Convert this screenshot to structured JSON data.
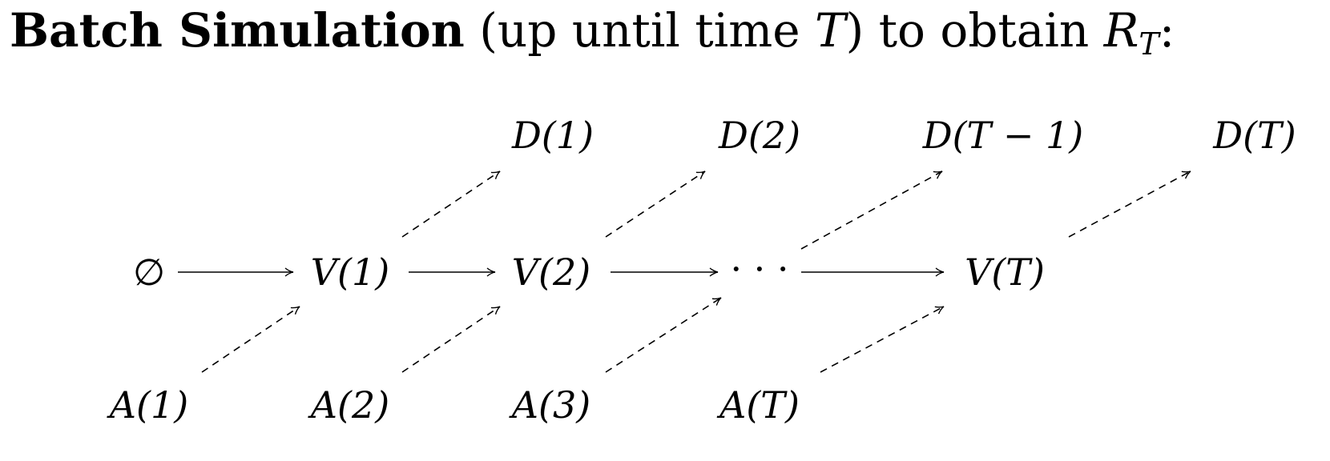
{
  "heading": {
    "bold": "Batch Simulation",
    "rest_prefix": "(up until time ",
    "rest_T": "T",
    "rest_suffix": ") to obtain ",
    "symbol": "R",
    "symbol_sub": "T",
    "colon": ":"
  },
  "nodes": {
    "empty": "∅",
    "v1": "V(1)",
    "v2": "V(2)",
    "dots": "· · ·",
    "vT": "V(T)",
    "d1": "D(1)",
    "d2": "D(2)",
    "dTm1": "D(T − 1)",
    "dT": "D(T)",
    "a1": "A(1)",
    "a2": "A(2)",
    "a3": "A(3)",
    "aT": "A(T)"
  }
}
